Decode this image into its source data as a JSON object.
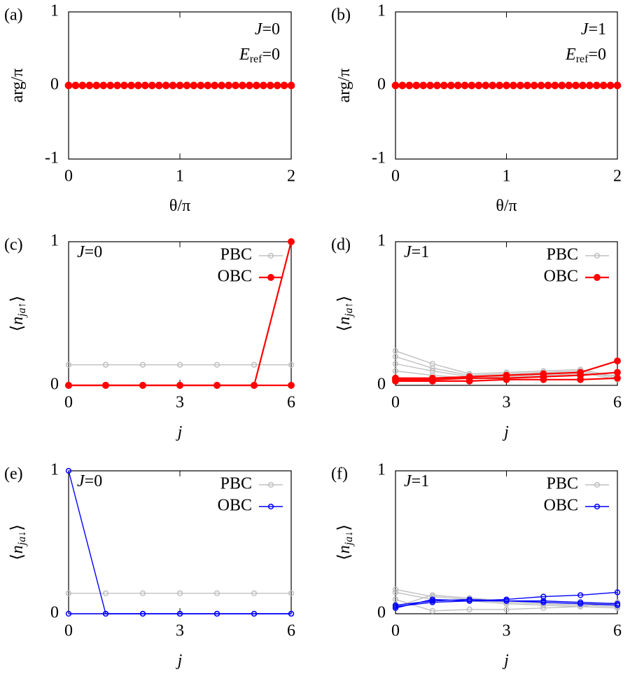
{
  "chart_data": [
    {
      "type": "scatter",
      "panel_label": "(a)",
      "xlabel": "θ/π",
      "ylabel": "arg/π",
      "xlim": [
        0,
        2
      ],
      "xticks": [
        0,
        1,
        2
      ],
      "ylim": [
        -1,
        1
      ],
      "yticks": [
        -1,
        0,
        1
      ],
      "annotation_corner": "top-right",
      "annotations": [
        [
          "J",
          "=0"
        ],
        [
          "E",
          "ref",
          "=0"
        ]
      ],
      "x": [
        0,
        0.0625,
        0.125,
        0.1875,
        0.25,
        0.3125,
        0.375,
        0.4375,
        0.5,
        0.5625,
        0.625,
        0.6875,
        0.75,
        0.8125,
        0.875,
        0.9375,
        1,
        1.0625,
        1.125,
        1.1875,
        1.25,
        1.3125,
        1.375,
        1.4375,
        1.5,
        1.5625,
        1.625,
        1.6875,
        1.75,
        1.8125,
        1.875,
        1.9375,
        2
      ],
      "series": [
        {
          "color": "#ff0000",
          "marker": "filled",
          "values": [
            0,
            0,
            0,
            0,
            0,
            0,
            0,
            0,
            0,
            0,
            0,
            0,
            0,
            0,
            0,
            0,
            0,
            0,
            0,
            0,
            0,
            0,
            0,
            0,
            0,
            0,
            0,
            0,
            0,
            0,
            0,
            0,
            0
          ]
        }
      ]
    },
    {
      "type": "scatter",
      "panel_label": "(b)",
      "xlabel": "θ/π",
      "ylabel": "arg/π",
      "xlim": [
        0,
        2
      ],
      "xticks": [
        0,
        1,
        2
      ],
      "ylim": [
        -1,
        1
      ],
      "yticks": [
        -1,
        0,
        1
      ],
      "annotation_corner": "top-right",
      "annotations": [
        [
          "J",
          "=1"
        ],
        [
          "E",
          "ref",
          "=0"
        ]
      ],
      "x": [
        0,
        0.0625,
        0.125,
        0.1875,
        0.25,
        0.3125,
        0.375,
        0.4375,
        0.5,
        0.5625,
        0.625,
        0.6875,
        0.75,
        0.8125,
        0.875,
        0.9375,
        1,
        1.0625,
        1.125,
        1.1875,
        1.25,
        1.3125,
        1.375,
        1.4375,
        1.5,
        1.5625,
        1.625,
        1.6875,
        1.75,
        1.8125,
        1.875,
        1.9375,
        2
      ],
      "series": [
        {
          "color": "#ff0000",
          "marker": "filled",
          "values": [
            0,
            0,
            0,
            0,
            0,
            0,
            0,
            0,
            0,
            0,
            0,
            0,
            0,
            0,
            0,
            0,
            0,
            0,
            0,
            0,
            0,
            0,
            0,
            0,
            0,
            0,
            0,
            0,
            0,
            0,
            0,
            0,
            0
          ]
        }
      ]
    },
    {
      "type": "line",
      "panel_label": "(c)",
      "xlabel": "j",
      "ylabel": [
        "⟨",
        "n",
        "ja↑",
        "⟩"
      ],
      "xlim": [
        0,
        6
      ],
      "xticks": [
        0,
        3,
        6
      ],
      "ylim": [
        0,
        1
      ],
      "yticks": [
        0,
        1
      ],
      "annotation_corner": "top-left",
      "annotations": [
        [
          "J",
          "=0"
        ]
      ],
      "x": [
        0,
        1,
        2,
        3,
        4,
        5,
        6
      ],
      "series": [
        {
          "name": "PBC",
          "color": "#c0c0c0",
          "marker": "open",
          "values": [
            0.143,
            0.143,
            0.143,
            0.143,
            0.143,
            0.143,
            0.143
          ]
        },
        {
          "name": "OBC",
          "color": "#ff0000",
          "marker": "filled",
          "values": [
            0,
            0,
            0,
            0,
            0,
            0,
            1
          ]
        },
        {
          "color": "#ff0000",
          "marker": "filled",
          "values": [
            0,
            0,
            0,
            0,
            0,
            0,
            0
          ]
        }
      ]
    },
    {
      "type": "line",
      "panel_label": "(d)",
      "xlabel": "j",
      "ylabel": [
        "⟨",
        "n",
        "ja↑",
        "⟩"
      ],
      "xlim": [
        0,
        6
      ],
      "xticks": [
        0,
        3,
        6
      ],
      "ylim": [
        0,
        1
      ],
      "yticks": [
        0,
        1
      ],
      "annotation_corner": "top-left",
      "annotations": [
        [
          "J",
          "=1"
        ]
      ],
      "x": [
        0,
        1,
        2,
        3,
        4,
        5,
        6
      ],
      "series": [
        {
          "name": "PBC",
          "color": "#c0c0c0",
          "marker": "open",
          "values": [
            0.24,
            0.15,
            0.08,
            0.09,
            0.1,
            0.11,
            0.06
          ]
        },
        {
          "color": "#c0c0c0",
          "marker": "open",
          "values": [
            0.2,
            0.12,
            0.07,
            0.08,
            0.09,
            0.1,
            0.05
          ]
        },
        {
          "color": "#c0c0c0",
          "marker": "open",
          "values": [
            0.15,
            0.1,
            0.06,
            0.07,
            0.08,
            0.09,
            0.04
          ]
        },
        {
          "color": "#c0c0c0",
          "marker": "open",
          "values": [
            0.1,
            0.07,
            0.05,
            0.06,
            0.07,
            0.08,
            0.07
          ]
        },
        {
          "name": "OBC",
          "color": "#ff0000",
          "marker": "filled",
          "values": [
            0.05,
            0.05,
            0.06,
            0.07,
            0.08,
            0.09,
            0.17
          ]
        },
        {
          "color": "#ff0000",
          "marker": "filled",
          "values": [
            0.04,
            0.04,
            0.05,
            0.05,
            0.06,
            0.07,
            0.09
          ]
        },
        {
          "color": "#ff0000",
          "marker": "filled",
          "values": [
            0.03,
            0.03,
            0.03,
            0.04,
            0.04,
            0.04,
            0.05
          ]
        }
      ]
    },
    {
      "type": "line",
      "panel_label": "(e)",
      "xlabel": "j",
      "ylabel": [
        "⟨",
        "n",
        "ja↓",
        "⟩"
      ],
      "xlim": [
        0,
        6
      ],
      "xticks": [
        0,
        3,
        6
      ],
      "ylim": [
        0,
        1
      ],
      "yticks": [
        0,
        1
      ],
      "annotation_corner": "top-left",
      "annotations": [
        [
          "J",
          "=0"
        ]
      ],
      "x": [
        0,
        1,
        2,
        3,
        4,
        5,
        6
      ],
      "series": [
        {
          "name": "PBC",
          "color": "#c0c0c0",
          "marker": "open",
          "values": [
            0.143,
            0.143,
            0.143,
            0.143,
            0.143,
            0.143,
            0.143
          ]
        },
        {
          "name": "OBC",
          "color": "#0000ff",
          "marker": "open",
          "values": [
            1,
            0,
            0,
            0,
            0,
            0,
            0
          ]
        },
        {
          "color": "#0000ff",
          "marker": "open",
          "values": [
            0,
            0,
            0,
            0,
            0,
            0,
            0
          ]
        }
      ]
    },
    {
      "type": "line",
      "panel_label": "(f)",
      "xlabel": "j",
      "ylabel": [
        "⟨",
        "n",
        "ja↓",
        "⟩"
      ],
      "xlim": [
        0,
        6
      ],
      "xticks": [
        0,
        3,
        6
      ],
      "ylim": [
        0,
        1
      ],
      "yticks": [
        0,
        1
      ],
      "annotation_corner": "top-left",
      "annotations": [
        [
          "J",
          "=1"
        ]
      ],
      "x": [
        0,
        1,
        2,
        3,
        4,
        5,
        6
      ],
      "series": [
        {
          "name": "PBC",
          "color": "#c0c0c0",
          "marker": "open",
          "values": [
            0.17,
            0.12,
            0.1,
            0.08,
            0.07,
            0.06,
            0.05
          ]
        },
        {
          "color": "#c0c0c0",
          "marker": "open",
          "values": [
            0.15,
            0.1,
            0.09,
            0.07,
            0.06,
            0.05,
            0.04
          ]
        },
        {
          "color": "#c0c0c0",
          "marker": "open",
          "values": [
            0.1,
            0.02,
            0.03,
            0.03,
            0.04,
            0.05,
            0.08
          ]
        },
        {
          "color": "#c0c0c0",
          "marker": "open",
          "values": [
            0.05,
            0.13,
            0.11,
            0.09,
            0.08,
            0.07,
            0.07
          ]
        },
        {
          "name": "OBC",
          "color": "#0000ff",
          "marker": "open",
          "values": [
            0.05,
            0.08,
            0.09,
            0.1,
            0.12,
            0.13,
            0.15
          ]
        },
        {
          "color": "#0000ff",
          "marker": "open",
          "values": [
            0.04,
            0.1,
            0.09,
            0.09,
            0.09,
            0.08,
            0.07
          ]
        },
        {
          "color": "#0000ff",
          "marker": "open",
          "values": [
            0.06,
            0.09,
            0.1,
            0.09,
            0.08,
            0.07,
            0.06
          ]
        }
      ]
    }
  ]
}
